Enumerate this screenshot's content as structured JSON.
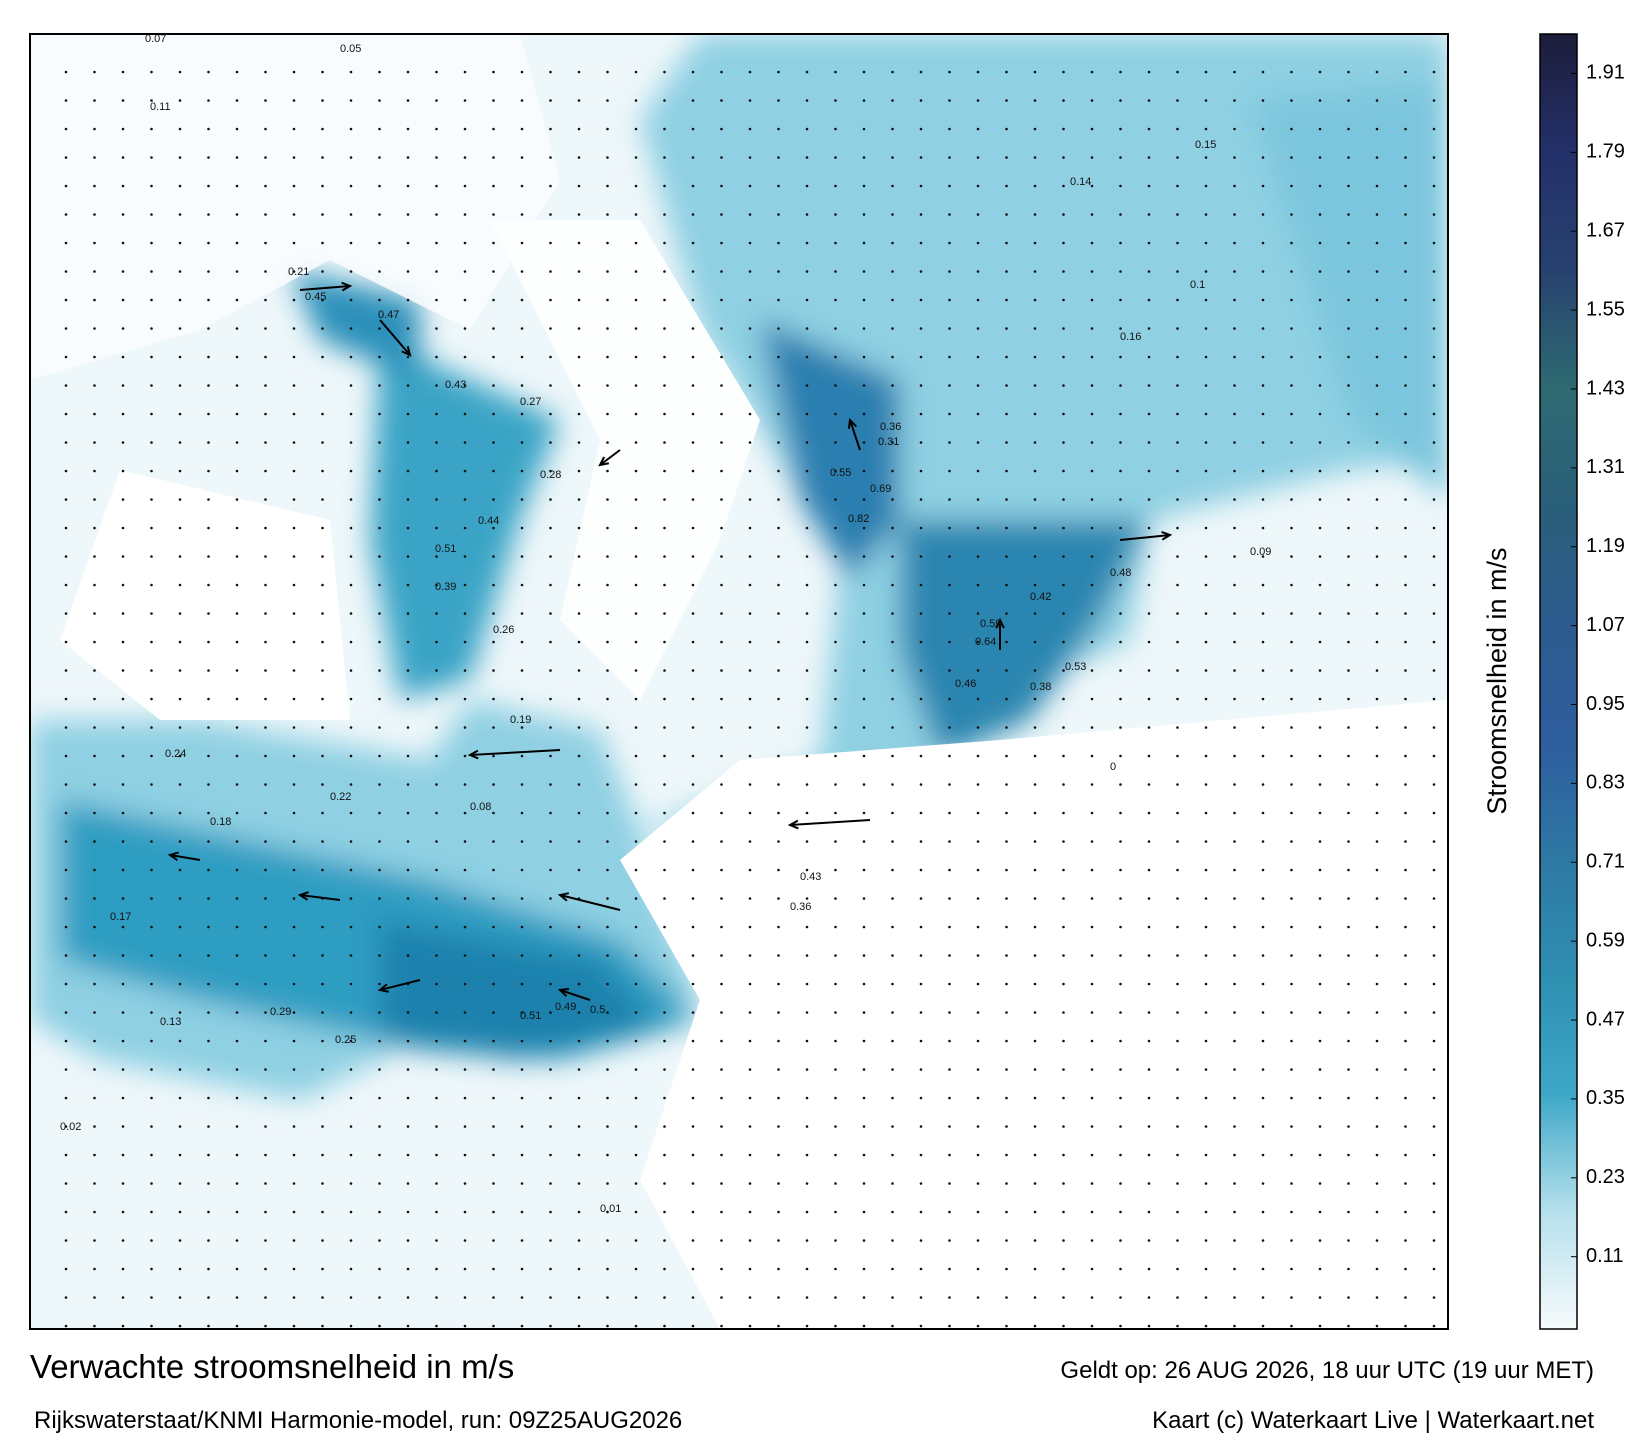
{
  "title": "Verwachte stroomsnelheid in m/s",
  "subtitle": "Rijkswaterstaat/KNMI Harmonie-model, run: 09Z25AUG2026",
  "valid_time": "Geldt op: 26 AUG 2026, 18 uur UTC (19 uur MET)",
  "credit": "Kaart (c) Waterkaart Live | Waterkaart.net",
  "colorbar": {
    "label": "Stroomsnelheid in m/s",
    "lim": [
      0,
      1.97
    ],
    "ticks": [
      0.11,
      0.23,
      0.35,
      0.47,
      0.59,
      0.71,
      0.83,
      0.95,
      1.07,
      1.19,
      1.31,
      1.43,
      1.55,
      1.67,
      1.79,
      1.91
    ],
    "colors": [
      "#f7fbfc",
      "#b5e0ec",
      "#3ea7c7",
      "#2f8fb0",
      "#2e78a4",
      "#2e5d9e",
      "#2d5b8e",
      "#2a5f79",
      "#2e6a72",
      "#27416f",
      "#24306a",
      "#1c1d3a"
    ]
  },
  "map_labels": [
    0.07,
    0.05,
    0.11,
    0.21,
    0.45,
    0.47,
    0.43,
    0.27,
    0.28,
    0.44,
    0.51,
    0.39,
    0.26,
    0.55,
    0.69,
    0.82,
    0.36,
    0.31,
    0.59,
    0.64,
    0.46,
    0.42,
    0.48,
    0.53,
    0.38,
    0.19,
    0.18,
    0.24,
    0.29,
    0.43,
    0.36,
    0.5,
    0.51,
    0.49,
    0.25,
    0.22,
    0.17,
    0.13,
    0.02,
    0.08,
    0.16,
    0.15,
    0.14,
    0.1,
    0.09,
    0.01,
    0
  ]
}
